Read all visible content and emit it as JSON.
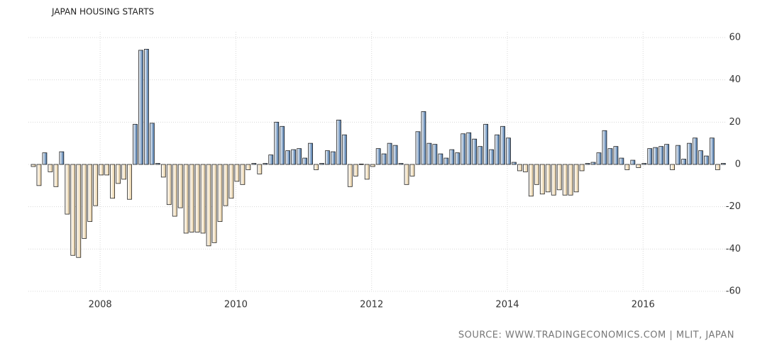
{
  "chart_data": {
    "type": "bar",
    "title": "JAPAN HOUSING STARTS",
    "source": "SOURCE: WWW.TRADINGECONOMICS.COM | MLIT, JAPAN",
    "categories": [
      null,
      null,
      null,
      null,
      null,
      null,
      null,
      null,
      null,
      null,
      null,
      null,
      "2008",
      null,
      null,
      null,
      null,
      null,
      null,
      null,
      null,
      null,
      null,
      null,
      null,
      null,
      null,
      null,
      null,
      null,
      null,
      null,
      null,
      null,
      null,
      null,
      "2010",
      null,
      null,
      null,
      null,
      null,
      null,
      null,
      null,
      null,
      null,
      null,
      null,
      null,
      null,
      null,
      null,
      null,
      null,
      null,
      null,
      null,
      null,
      null,
      "2012",
      null,
      null,
      null,
      null,
      null,
      null,
      null,
      null,
      null,
      null,
      null,
      null,
      null,
      null,
      null,
      null,
      null,
      null,
      null,
      null,
      null,
      null,
      null,
      "2014",
      null,
      null,
      null,
      null,
      null,
      null,
      null,
      null,
      null,
      null,
      null,
      null,
      null,
      null,
      null,
      null,
      null,
      null,
      null,
      null,
      null,
      null,
      null,
      "2016",
      null,
      null,
      null,
      null,
      null,
      null,
      null,
      null,
      null,
      null,
      null,
      null,
      null,
      null
    ],
    "values": [
      -1,
      -10,
      5.5,
      -3.5,
      -10.5,
      6,
      -23.5,
      -43,
      -44,
      -35,
      -27,
      -19.5,
      -5,
      -5,
      -16,
      -9,
      -7,
      -16.5,
      19,
      54,
      54.5,
      19.5,
      0.5,
      -6,
      -19,
      -24.5,
      -20.5,
      -32.5,
      -32,
      -32,
      -32.5,
      -38.5,
      -37,
      -27,
      -19.5,
      -16,
      -8,
      -9.5,
      -2.5,
      0.5,
      -4.5,
      0.5,
      4.5,
      20,
      18,
      6.5,
      7,
      7.5,
      3,
      10,
      -2.5,
      0.5,
      6.5,
      6,
      21,
      14,
      -10.5,
      -5.5,
      0.2,
      -7,
      -1,
      7.5,
      5,
      10,
      9,
      0.5,
      -9.5,
      -5.5,
      15.5,
      25,
      10,
      9.5,
      5,
      3,
      7,
      5.5,
      14.5,
      15,
      12,
      8.5,
      19,
      7,
      14,
      18,
      12.5,
      1,
      -3,
      -3.5,
      -15,
      -9.5,
      -14,
      -13,
      -14.5,
      -12,
      -14.5,
      -14.5,
      -13,
      -3,
      0.5,
      1,
      5.5,
      16,
      7.5,
      8.5,
      3,
      -2.5,
      2,
      -1.5,
      0.5,
      7.5,
      8,
      8.5,
      9.5,
      -2.5,
      9,
      2.5,
      10,
      12.5,
      6.5,
      4,
      12.5,
      -2.5,
      0.5
    ],
    "positive_color": "#3f6fa6",
    "negative_color": "#e9cfa0",
    "ylim": [
      -60,
      60
    ],
    "yticks": [
      -60,
      -40,
      -20,
      0,
      20,
      40,
      60
    ],
    "grid": true
  }
}
